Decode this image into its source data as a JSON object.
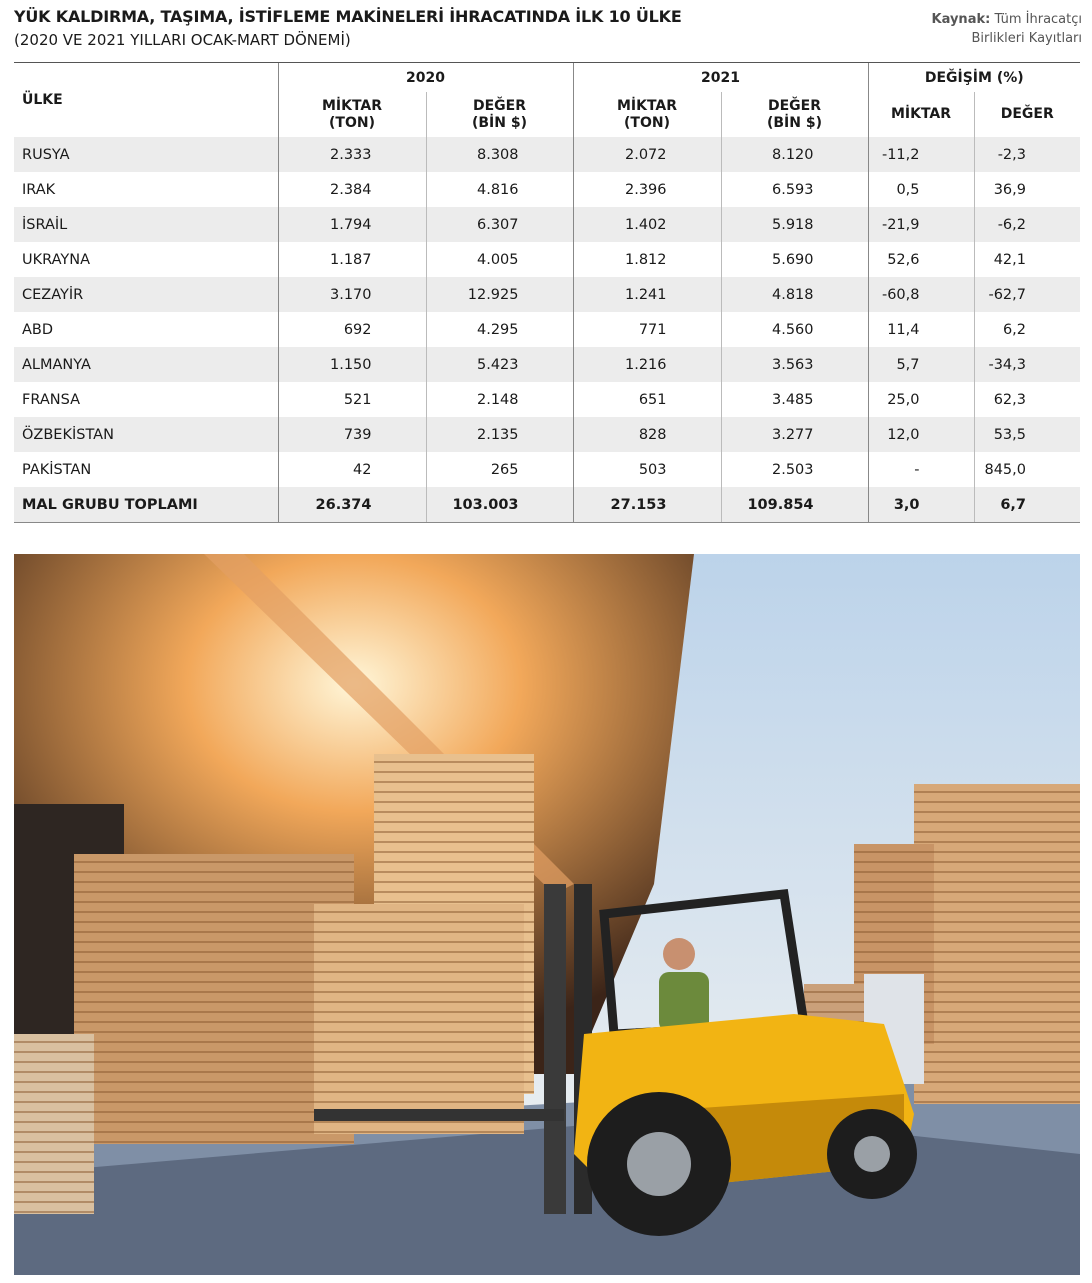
{
  "header": {
    "title": "YÜK KALDIRMA, TAŞIMA, İSTİFLEME MAKİNELERİ İHRACATINDA İLK 10 ÜLKE",
    "subtitle": "(2020 VE 2021 YILLARI OCAK-MART DÖNEMİ)",
    "source_label": "Kaynak:",
    "source": "Tüm İhracatçı Birlikleri Kayıtları"
  },
  "table": {
    "country_header": "ÜLKE",
    "groups": [
      "2020",
      "2021",
      "DEĞİŞİM (%)"
    ],
    "columns": [
      [
        "MİKTAR",
        "(TON)"
      ],
      [
        "DEĞER",
        "(BİN $)"
      ],
      [
        "MİKTAR",
        "(TON)"
      ],
      [
        "DEĞER",
        "(BİN $)"
      ],
      [
        "MİKTAR"
      ],
      [
        "DEĞER"
      ]
    ],
    "rows": [
      [
        "RUSYA",
        "2.333",
        "8.308",
        "2.072",
        "8.120",
        "-11,2",
        "-2,3"
      ],
      [
        "IRAK",
        "2.384",
        "4.816",
        "2.396",
        "6.593",
        "0,5",
        "36,9"
      ],
      [
        "İSRAİL",
        "1.794",
        "6.307",
        "1.402",
        "5.918",
        "-21,9",
        "-6,2"
      ],
      [
        "UKRAYNA",
        "1.187",
        "4.005",
        "1.812",
        "5.690",
        "52,6",
        "42,1"
      ],
      [
        "CEZAYİR",
        "3.170",
        "12.925",
        "1.241",
        "4.818",
        "-60,8",
        "-62,7"
      ],
      [
        "ABD",
        "692",
        "4.295",
        "771",
        "4.560",
        "11,4",
        "6,2"
      ],
      [
        "ALMANYA",
        "1.150",
        "5.423",
        "1.216",
        "3.563",
        "5,7",
        "-34,3"
      ],
      [
        "FRANSA",
        "521",
        "2.148",
        "651",
        "3.485",
        "25,0",
        "62,3"
      ],
      [
        "ÖZBEKİSTAN",
        "739",
        "2.135",
        "828",
        "3.277",
        "12,0",
        "53,5"
      ],
      [
        "PAKİSTAN",
        "42",
        "265",
        "503",
        "2.503",
        "-",
        "845,0"
      ]
    ],
    "total": [
      "MAL GRUBU TOPLAMI",
      "26.374",
      "103.003",
      "27.153",
      "109.854",
      "3,0",
      "6,7"
    ]
  }
}
